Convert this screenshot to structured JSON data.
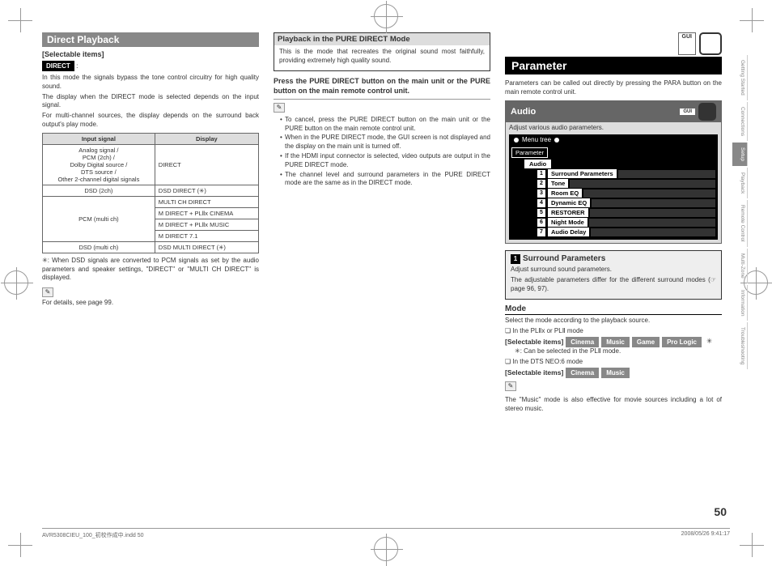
{
  "col1": {
    "header": "Direct Playback",
    "selectable_label": "[Selectable items]",
    "direct_badge": "DIRECT",
    "intro1": "In this mode the signals bypass the tone control circuitry for high quality sound.",
    "intro2": "The display when the DIRECT mode is selected depends on the input signal.",
    "intro3": "For multi-channel sources, the display depends on the surround back output's play mode.",
    "th1": "Input signal",
    "th2": "Display",
    "r1a": "Analog signal /\nPCM (2ch) /\nDolby Digital source /\nDTS source /\nOther 2-channel digital signals",
    "r1b": "DIRECT",
    "r2a": "DSD (2ch)",
    "r2b": "DSD DIRECT (✳)",
    "r3a": "PCM (multi ch)",
    "r3b1": "MULTI CH DIRECT",
    "r3b2": "M DIRECT + PLⅡx CINEMA",
    "r3b3": "M DIRECT + PLⅡx MUSIC",
    "r3b4": "M DIRECT 7.1",
    "r4a": "DSD (multi ch)",
    "r4b": "DSD MULTI DIRECT (✳)",
    "note": "✳: When DSD signals are converted to PCM signals as set by the audio parameters and speaker settings, \"DIRECT\" or \"MULTI CH DIRECT\" is displayed.",
    "details": "For details, see page 99."
  },
  "col2": {
    "box_header": "Playback in the PURE DIRECT Mode",
    "box_text": "This is the mode that recreates the original sound most faithfully, providing extremely high quality sound.",
    "press": "Press the PURE DIRECT button on the main unit or the PURE button on the main remote control unit.",
    "b1": "To cancel, press the PURE DIRECT button on the main unit or the PURE button on the main remote control unit.",
    "b2": "When in the PURE DIRECT mode, the GUI screen is not displayed and the display on the main unit is turned off.",
    "b3": "If the HDMI input connector is selected, video outputs are output in the PURE DIRECT mode.",
    "b4": "The channel level and surround parameters in the PURE DIRECT mode are the same as in the DIRECT mode."
  },
  "col3": {
    "gui": "GUI",
    "parameter": "Parameter",
    "desc": "Parameters can be called out directly by pressing the PARA button on the main remote control unit.",
    "audio_hdr": "Audio",
    "audio_desc": "Adjust various audio parameters.",
    "menu_tree": "Menu tree",
    "tree_param": "Parameter",
    "tree_audio": "Audio",
    "items": [
      "Surround Parameters",
      "Tone",
      "Room EQ",
      "Dynamic EQ",
      "RESTORER",
      "Night Mode",
      "Audio Delay"
    ],
    "sp_hdr": "Surround Parameters",
    "sp_desc1": "Adjust surround sound parameters.",
    "sp_desc2": "The adjustable parameters differ for the different surround modes (☞page 96, 97).",
    "mode_hdr": "Mode",
    "mode_desc": "Select the mode according to the playback source.",
    "pl2_line": "❏ In the PLⅡx or PLⅡ mode",
    "sel_label": "[Selectable items]",
    "pl2_opts": [
      "Cinema",
      "Music",
      "Game",
      "Pro Logic"
    ],
    "pl2_note": "✳: Can be selected in the PLⅡ mode.",
    "neo_line": "❏ In the DTS NEO:6 mode",
    "neo_opts": [
      "Cinema",
      "Music"
    ],
    "music_note": "The \"Music\" mode is also effective for movie sources including a lot of stereo music."
  },
  "tabs": [
    "Getting Started",
    "Connections",
    "Setup",
    "Playback",
    "Remote Control",
    "Multi-Zone",
    "Information",
    "Troubleshooting"
  ],
  "page": "50",
  "footer_l": "AVR5308CIEU_100_初校作成中.indd   50",
  "footer_r": "2008/05/26   9:41:17"
}
